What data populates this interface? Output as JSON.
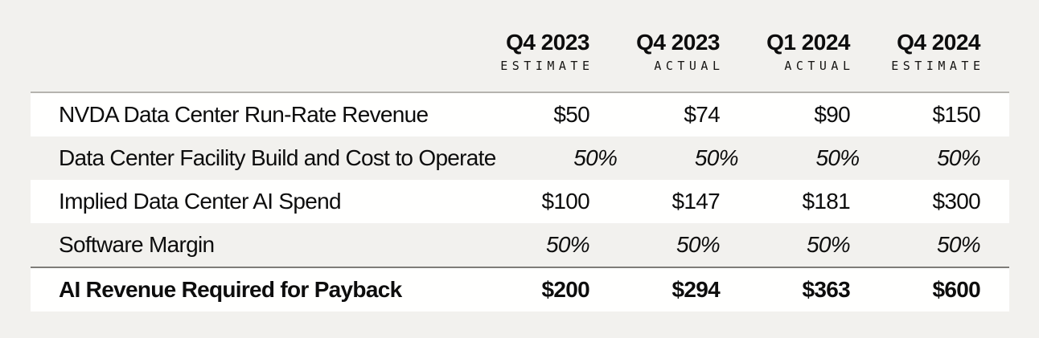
{
  "chart_data": {
    "type": "table",
    "columns": [
      {
        "period": "Q4 2023",
        "kind": "ESTIMATE"
      },
      {
        "period": "Q4 2023",
        "kind": "ACTUAL"
      },
      {
        "period": "Q1 2024",
        "kind": "ACTUAL"
      },
      {
        "period": "Q4 2024",
        "kind": "ESTIMATE"
      }
    ],
    "rows": [
      {
        "label": "NVDA Data Center Run-Rate Revenue",
        "values": [
          "$50",
          "$74",
          "$90",
          "$150"
        ],
        "value_style": "currency",
        "emphasis": false
      },
      {
        "label": "Data Center Facility Build and Cost to Operate",
        "values": [
          "50%",
          "50%",
          "50%",
          "50%"
        ],
        "value_style": "percent",
        "emphasis": false
      },
      {
        "label": "Implied Data Center AI Spend",
        "values": [
          "$100",
          "$147",
          "$181",
          "$300"
        ],
        "value_style": "currency",
        "emphasis": false
      },
      {
        "label": "Software Margin",
        "values": [
          "50%",
          "50%",
          "50%",
          "50%"
        ],
        "value_style": "percent",
        "emphasis": false
      },
      {
        "label": "AI Revenue Required for Payback",
        "values": [
          "$200",
          "$294",
          "$363",
          "$600"
        ],
        "value_style": "currency",
        "emphasis": true
      }
    ],
    "layout": {
      "legend": "none",
      "grid": "alternating-row-shading",
      "value_alignment": "right",
      "total_row_separator": true
    }
  },
  "colors": {
    "page_bg": "#f2f1ee",
    "row_bg": "#ffffff",
    "top_rule": "#b5b3ae",
    "total_rule": "#7e7c78",
    "text": "#0d0d0d"
  }
}
